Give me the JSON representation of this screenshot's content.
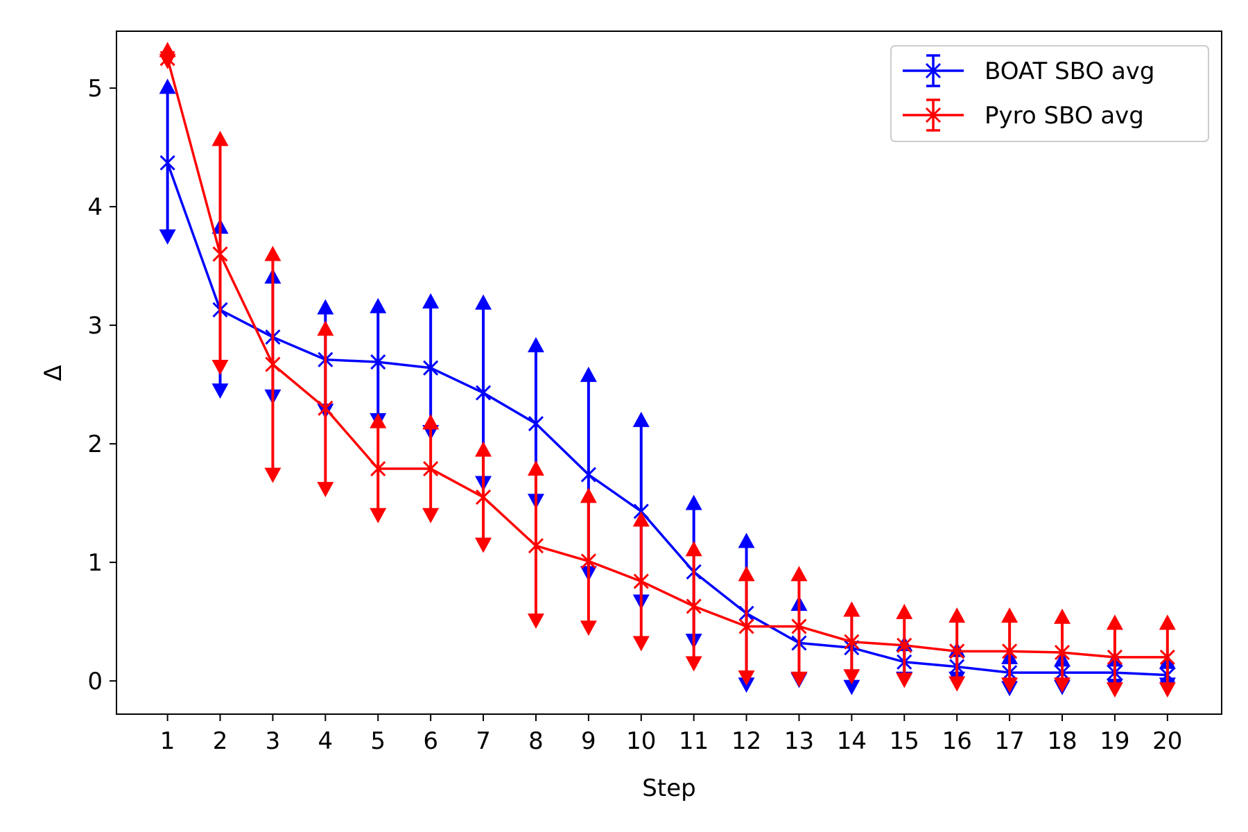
{
  "chart_data": {
    "type": "line",
    "title": "",
    "xlabel": "Step",
    "ylabel": "Δ",
    "xlim": [
      0.03,
      21.03
    ],
    "ylim": [
      -0.28,
      5.48
    ],
    "x_ticks": [
      1,
      2,
      3,
      4,
      5,
      6,
      7,
      8,
      9,
      10,
      11,
      12,
      13,
      14,
      15,
      16,
      17,
      18,
      19,
      20
    ],
    "y_ticks": [
      0,
      1,
      2,
      3,
      4,
      5
    ],
    "grid": false,
    "legend_position": "top-right",
    "x": [
      1,
      2,
      3,
      4,
      5,
      6,
      7,
      8,
      9,
      10,
      11,
      12,
      13,
      14,
      15,
      16,
      17,
      18,
      19,
      20
    ],
    "series": [
      {
        "name": "BOAT SBO avg",
        "color": "#0000ff",
        "values": [
          4.37,
          3.13,
          2.9,
          2.71,
          2.69,
          2.64,
          2.43,
          2.17,
          1.74,
          1.43,
          0.92,
          0.57,
          0.32,
          0.28,
          0.16,
          0.12,
          0.07,
          0.07,
          0.07,
          0.05
        ],
        "lower": [
          3.75,
          2.45,
          2.4,
          2.28,
          2.2,
          2.1,
          1.67,
          1.52,
          0.91,
          0.67,
          0.34,
          -0.03,
          0.01,
          -0.05,
          0.02,
          0.02,
          -0.06,
          -0.05,
          -0.04,
          -0.03
        ],
        "upper": [
          5.01,
          3.83,
          3.41,
          3.15,
          3.16,
          3.2,
          3.19,
          2.83,
          2.58,
          2.2,
          1.5,
          1.18,
          0.65,
          0.6,
          0.31,
          0.26,
          0.2,
          0.18,
          0.18,
          0.16
        ]
      },
      {
        "name": "Pyro SBO avg",
        "color": "#ff0000",
        "values": [
          5.25,
          3.6,
          2.67,
          2.3,
          1.79,
          1.79,
          1.55,
          1.14,
          1.01,
          0.84,
          0.63,
          0.46,
          0.46,
          0.33,
          0.3,
          0.25,
          0.25,
          0.24,
          0.2,
          0.2
        ],
        "lower": [
          5.23,
          2.65,
          1.74,
          1.62,
          1.4,
          1.4,
          1.15,
          0.51,
          0.45,
          0.32,
          0.15,
          0.03,
          0.02,
          0.04,
          0.01,
          -0.02,
          -0.03,
          -0.03,
          -0.07,
          -0.07
        ],
        "upper": [
          5.32,
          4.57,
          3.6,
          2.97,
          2.19,
          2.18,
          1.95,
          1.79,
          1.56,
          1.36,
          1.11,
          0.9,
          0.9,
          0.6,
          0.58,
          0.55,
          0.55,
          0.54,
          0.49,
          0.49
        ]
      }
    ]
  }
}
